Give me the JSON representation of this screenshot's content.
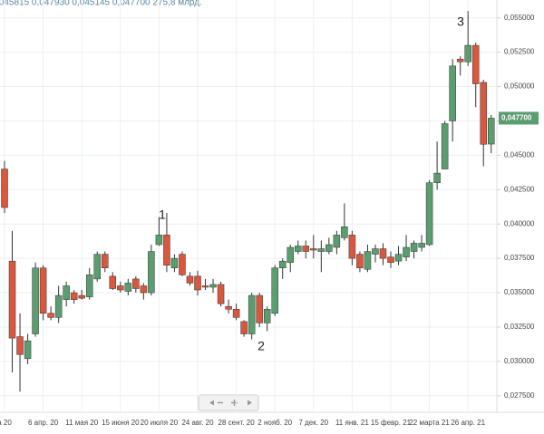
{
  "chart_data": {
    "type": "candlestick",
    "header_text": ",045815 0,047930 0,045145 0,047700 275,8 млрд.",
    "up_color": "#5a9e6f",
    "down_color": "#d9573f",
    "categories": [
      "а 20",
      null,
      null,
      null,
      null,
      "6 апр. 20",
      null,
      null,
      null,
      null,
      "11 мая 20",
      null,
      null,
      null,
      null,
      "15 июня 20",
      null,
      null,
      null,
      null,
      "20 июля 20",
      null,
      null,
      null,
      null,
      "24 авг. 20",
      null,
      null,
      null,
      null,
      "28 сент. 20",
      null,
      null,
      null,
      null,
      "2 нояб. 20",
      null,
      null,
      null,
      null,
      "7 дек. 20",
      null,
      null,
      null,
      null,
      "11 янв. 21",
      null,
      null,
      null,
      null,
      "15 февр. 21",
      null,
      null,
      null,
      null,
      "22 марта 21",
      null,
      null,
      null,
      null,
      "26 апр. 21",
      null,
      null,
      null
    ],
    "open": [
      0.044,
      0.0373,
      0.0318,
      0.0302,
      0.032,
      0.0368,
      0.0335,
      0.0332,
      0.0345,
      0.035,
      0.0348,
      0.0347,
      0.036,
      0.0378,
      0.0362,
      0.0355,
      0.0351,
      0.036,
      0.0355,
      0.035,
      0.0385,
      0.0392,
      0.0368,
      0.0378,
      0.0362,
      0.0362,
      0.0355,
      0.0354,
      0.0356,
      0.034,
      0.0338,
      0.0329,
      0.032,
      0.0348,
      0.0328,
      0.0335,
      0.0368,
      0.0372,
      0.038,
      0.0384,
      0.0382,
      0.038,
      0.038,
      0.0383,
      0.039,
      0.0392,
      0.0378,
      0.0367,
      0.0378,
      0.0382,
      0.0376,
      0.0373,
      0.0376,
      0.038,
      0.0383,
      0.0385,
      0.043,
      0.044,
      0.0475,
      0.052,
      0.0518,
      0.053,
      0.0503,
      0.045815
    ],
    "high": [
      0.0446,
      0.0395,
      0.0335,
      0.032,
      0.0372,
      0.037,
      0.034,
      0.0355,
      0.0358,
      0.0352,
      0.0352,
      0.0368,
      0.038,
      0.038,
      0.0365,
      0.0358,
      0.036,
      0.0362,
      0.0357,
      0.0385,
      0.0405,
      0.0408,
      0.0378,
      0.038,
      0.0365,
      0.0366,
      0.036,
      0.036,
      0.0358,
      0.0345,
      0.0342,
      0.033,
      0.035,
      0.035,
      0.034,
      0.037,
      0.0375,
      0.0385,
      0.0388,
      0.0388,
      0.0392,
      0.0388,
      0.039,
      0.0395,
      0.0415,
      0.0395,
      0.038,
      0.0385,
      0.0385,
      0.0386,
      0.038,
      0.0384,
      0.0392,
      0.0388,
      0.0392,
      0.0432,
      0.046,
      0.0475,
      0.052,
      0.0522,
      0.0555,
      0.0532,
      0.0505,
      0.04793
    ],
    "low": [
      0.0408,
      0.0292,
      0.0278,
      0.0298,
      0.0318,
      0.033,
      0.033,
      0.0328,
      0.034,
      0.0342,
      0.0345,
      0.0345,
      0.0358,
      0.0365,
      0.0352,
      0.035,
      0.0348,
      0.035,
      0.0345,
      0.0348,
      0.0384,
      0.0365,
      0.0365,
      0.0362,
      0.0355,
      0.0348,
      0.0352,
      0.035,
      0.034,
      0.0335,
      0.033,
      0.0318,
      0.0316,
      0.0325,
      0.0322,
      0.0333,
      0.036,
      0.0365,
      0.0378,
      0.0375,
      0.0375,
      0.0365,
      0.0378,
      0.0378,
      0.0388,
      0.037,
      0.0365,
      0.0365,
      0.0372,
      0.037,
      0.0368,
      0.037,
      0.0373,
      0.0375,
      0.038,
      0.0384,
      0.0425,
      0.044,
      0.046,
      0.0508,
      0.0515,
      0.0485,
      0.0442,
      0.045145
    ],
    "close": [
      0.0412,
      0.0317,
      0.0305,
      0.0315,
      0.0368,
      0.0335,
      0.0332,
      0.0348,
      0.0355,
      0.0345,
      0.0346,
      0.0363,
      0.0378,
      0.0368,
      0.0353,
      0.0352,
      0.0357,
      0.0353,
      0.035,
      0.038,
      0.0392,
      0.037,
      0.0375,
      0.0363,
      0.0357,
      0.0352,
      0.0354,
      0.0356,
      0.0342,
      0.0338,
      0.0332,
      0.032,
      0.0348,
      0.0328,
      0.0338,
      0.0368,
      0.0373,
      0.0383,
      0.0384,
      0.038,
      0.0381,
      0.0382,
      0.0385,
      0.0392,
      0.0398,
      0.0375,
      0.0368,
      0.038,
      0.0382,
      0.0375,
      0.0372,
      0.0378,
      0.0383,
      0.0386,
      0.0386,
      0.043,
      0.0437,
      0.0473,
      0.0515,
      0.0518,
      0.053,
      0.0502,
      0.0458,
      0.0477
    ],
    "ylim": [
      0.0263,
      0.0563
    ],
    "yticks": [
      {
        "value": 0.0275,
        "label": "0,027500"
      },
      {
        "value": 0.03,
        "label": "0,030000"
      },
      {
        "value": 0.0325,
        "label": "0,032500"
      },
      {
        "value": 0.035,
        "label": "0,035000"
      },
      {
        "value": 0.0375,
        "label": "0,037500"
      },
      {
        "value": 0.04,
        "label": "0,040000"
      },
      {
        "value": 0.0425,
        "label": "0,042500"
      },
      {
        "value": 0.045,
        "label": "0,045000"
      },
      {
        "value": 0.0475,
        "label": "0,047500"
      },
      {
        "value": 0.05,
        "label": "0,050000"
      },
      {
        "value": 0.0525,
        "label": "0,052500"
      },
      {
        "value": 0.055,
        "label": "0,055000"
      }
    ],
    "last_price": {
      "value": 0.0477,
      "label": "0,047700"
    },
    "annotations": [
      "1",
      "2",
      "3"
    ],
    "grid": true
  }
}
